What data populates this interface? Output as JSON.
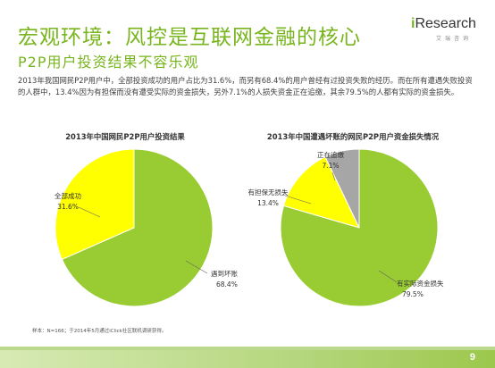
{
  "header": {
    "title": "宏观环境：风控是互联网金融的核心",
    "subtitle": "P2P用户投资结果不容乐观",
    "logo_text_prefix": "i",
    "logo_text": "Research",
    "logo_sub": "艾瑞咨询"
  },
  "body": {
    "paragraph": "2013年我国网民P2P用户中，全部投资成功的用户占比为31.6%，而另有68.4%的用户曾经有过投资失败的经历。而在所有遭遇失败投资的人群中，13.4%因为有担保而没有遭受实际的资金损失，另外7.1%的人损失资金正在追缴，其余79.5%的人都有实际的资金损失。"
  },
  "chart_data": [
    {
      "type": "pie",
      "title": "2013年中国网民P2P用户投资结果",
      "slices": [
        {
          "label": "全部成功",
          "value": 31.6,
          "value_label": "31.6%",
          "color": "#ffff00"
        },
        {
          "label": "遇到坏账",
          "value": 68.4,
          "value_label": "68.4%",
          "color": "#99cc33"
        }
      ]
    },
    {
      "type": "pie",
      "title": "2013年中国遭遇坏账的网民P2P用户资金损失情况",
      "slices": [
        {
          "label": "正在追缴",
          "value": 7.1,
          "value_label": "7.1%",
          "color": "#a6a6a6"
        },
        {
          "label": "有担保无损失",
          "value": 13.4,
          "value_label": "13.4%",
          "color": "#ffff00"
        },
        {
          "label": "有实际资金损失",
          "value": 79.5,
          "value_label": "79.5%",
          "color": "#99cc33"
        }
      ]
    }
  ],
  "footer": {
    "note": "样本：N=166；于2014年5月通过iClick社区联机调研获得。",
    "page_number": "9"
  },
  "colors": {
    "accent_green": "#78b51e",
    "pie_green": "#99cc33",
    "pie_yellow": "#ffff00",
    "pie_gray": "#a6a6a6"
  }
}
